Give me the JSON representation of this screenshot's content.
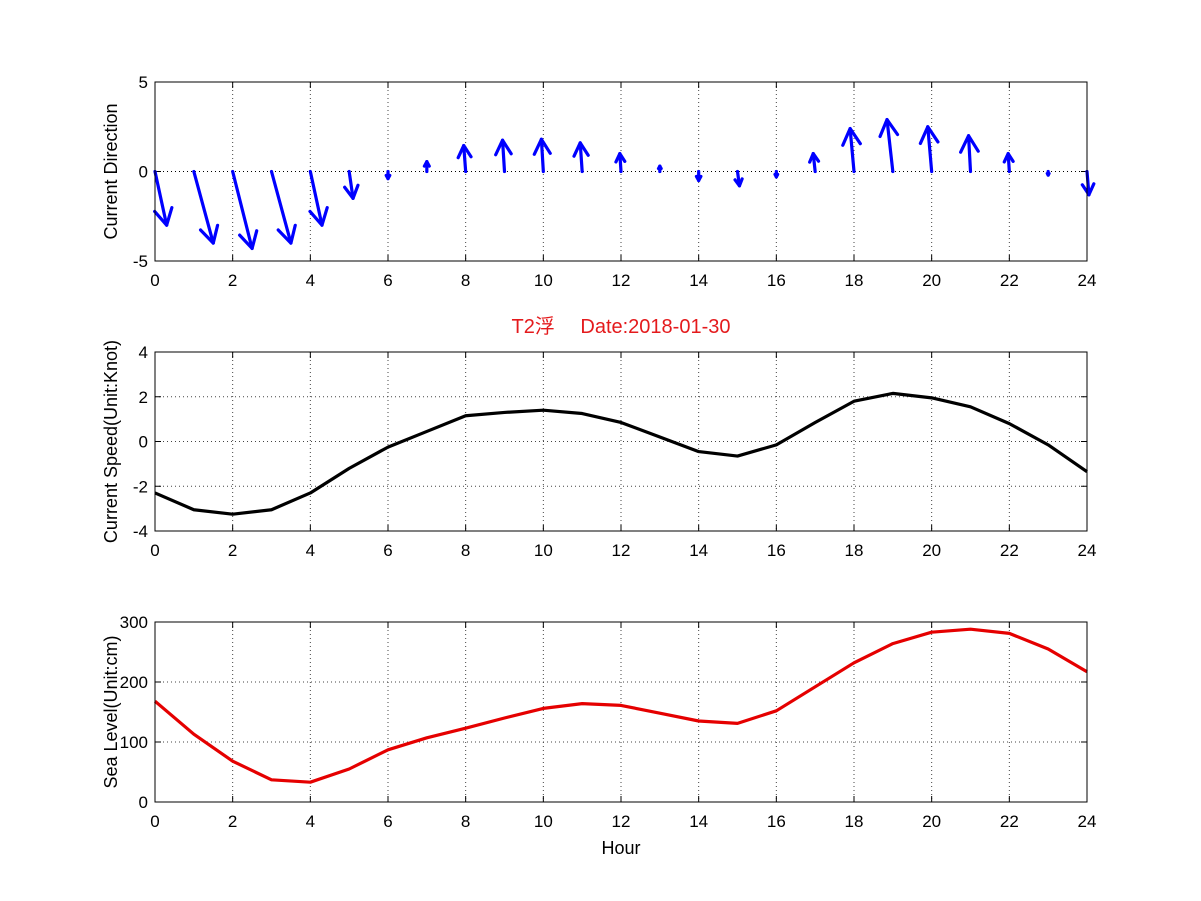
{
  "figure": {
    "title": "T2浮　 Date:2018-01-30",
    "title_color": "#e41a1c"
  },
  "chart_data": [
    {
      "type": "quiver",
      "ylabel": "Current Direction",
      "xlabel": "",
      "xlim": [
        0,
        24
      ],
      "ylim": [
        -5,
        5
      ],
      "xticks": [
        "0",
        "2",
        "4",
        "6",
        "8",
        "10",
        "12",
        "14",
        "16",
        "18",
        "20",
        "22",
        "24"
      ],
      "yticks": [
        "-5",
        "0",
        "5"
      ],
      "grid": true,
      "color": "#0000ff",
      "zero_line": true,
      "vectors": [
        {
          "x": 0,
          "u": 0.3,
          "v": -3.0
        },
        {
          "x": 1,
          "u": 0.5,
          "v": -4.0
        },
        {
          "x": 2,
          "u": 0.5,
          "v": -4.3
        },
        {
          "x": 3,
          "u": 0.5,
          "v": -4.0
        },
        {
          "x": 4,
          "u": 0.3,
          "v": -3.0
        },
        {
          "x": 5,
          "u": 0.1,
          "v": -1.5
        },
        {
          "x": 6,
          "u": 0.0,
          "v": -0.4
        },
        {
          "x": 7,
          "u": 0.0,
          "v": 0.55
        },
        {
          "x": 8,
          "u": -0.05,
          "v": 1.45
        },
        {
          "x": 9,
          "u": -0.05,
          "v": 1.75
        },
        {
          "x": 10,
          "u": -0.05,
          "v": 1.8
        },
        {
          "x": 11,
          "u": -0.05,
          "v": 1.6
        },
        {
          "x": 12,
          "u": -0.03,
          "v": 1.0
        },
        {
          "x": 13,
          "u": 0.0,
          "v": 0.3
        },
        {
          "x": 14,
          "u": 0.0,
          "v": -0.5
        },
        {
          "x": 15,
          "u": 0.05,
          "v": -0.8
        },
        {
          "x": 16,
          "u": 0.0,
          "v": -0.3
        },
        {
          "x": 17,
          "u": -0.05,
          "v": 1.0
        },
        {
          "x": 18,
          "u": -0.1,
          "v": 2.4
        },
        {
          "x": 19,
          "u": -0.15,
          "v": 2.9
        },
        {
          "x": 20,
          "u": -0.1,
          "v": 2.5
        },
        {
          "x": 21,
          "u": -0.05,
          "v": 2.0
        },
        {
          "x": 22,
          "u": -0.03,
          "v": 1.0
        },
        {
          "x": 23,
          "u": 0.0,
          "v": -0.2
        },
        {
          "x": 24,
          "u": 0.05,
          "v": -1.3
        }
      ]
    },
    {
      "type": "line",
      "ylabel": "Current Speed(Unit:Knot)",
      "xlabel": "",
      "xlim": [
        0,
        24
      ],
      "ylim": [
        -4,
        4
      ],
      "xticks": [
        "0",
        "2",
        "4",
        "6",
        "8",
        "10",
        "12",
        "14",
        "16",
        "18",
        "20",
        "22",
        "24"
      ],
      "yticks": [
        "-4",
        "-2",
        "0",
        "2",
        "4"
      ],
      "grid": true,
      "color": "#000000",
      "x": [
        0,
        1,
        2,
        3,
        4,
        5,
        6,
        7,
        8,
        9,
        10,
        11,
        12,
        13,
        14,
        15,
        16,
        17,
        18,
        19,
        20,
        21,
        22,
        23,
        24
      ],
      "y": [
        -2.3,
        -3.05,
        -3.25,
        -3.05,
        -2.3,
        -1.2,
        -0.25,
        0.45,
        1.15,
        1.3,
        1.4,
        1.25,
        0.85,
        0.2,
        -0.45,
        -0.65,
        -0.15,
        0.85,
        1.8,
        2.15,
        1.95,
        1.55,
        0.8,
        -0.15,
        -1.35
      ]
    },
    {
      "type": "line",
      "ylabel": "Sea Level(Unit:cm)",
      "xlabel": "Hour",
      "xlim": [
        0,
        24
      ],
      "ylim": [
        0,
        300
      ],
      "xticks": [
        "0",
        "2",
        "4",
        "6",
        "8",
        "10",
        "12",
        "14",
        "16",
        "18",
        "20",
        "22",
        "24"
      ],
      "yticks": [
        "0",
        "100",
        "200",
        "300"
      ],
      "grid": true,
      "color": "#e50000",
      "x": [
        0,
        1,
        2,
        3,
        4,
        5,
        6,
        7,
        8,
        9,
        10,
        11,
        12,
        13,
        14,
        15,
        16,
        17,
        18,
        19,
        20,
        21,
        22,
        23,
        24
      ],
      "y": [
        168,
        113,
        68,
        37,
        33,
        55,
        87,
        107,
        123,
        140,
        156,
        164,
        161,
        148,
        135,
        131,
        152,
        192,
        232,
        264,
        283,
        288,
        281,
        255,
        217
      ]
    }
  ]
}
